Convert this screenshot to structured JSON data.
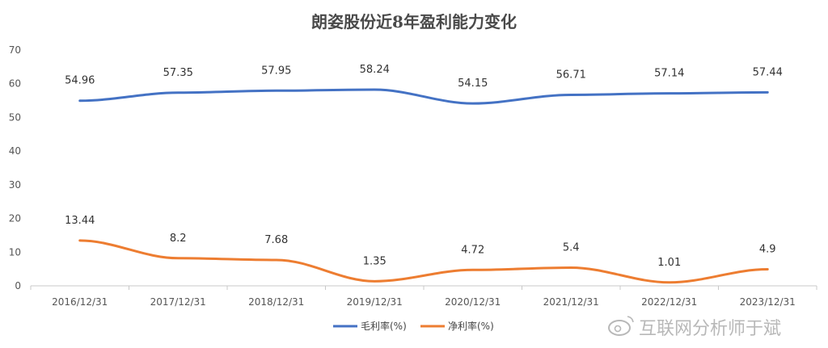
{
  "chart_data": {
    "type": "line",
    "title": "朗姿股份近8年盈利能力变化",
    "categories": [
      "2016/12/31",
      "2017/12/31",
      "2018/12/31",
      "2019/12/31",
      "2020/12/31",
      "2021/12/31",
      "2022/12/31",
      "2023/12/31"
    ],
    "series": [
      {
        "name": "毛利率(%)",
        "color": "#4472c4",
        "values": [
          54.96,
          57.35,
          57.95,
          58.24,
          54.15,
          56.71,
          57.14,
          57.44
        ],
        "labels": [
          "54.96",
          "57.35",
          "57.95",
          "58.24",
          "54.15",
          "56.71",
          "57.14",
          "57.44"
        ]
      },
      {
        "name": "净利率(%)",
        "color": "#ed7d31",
        "values": [
          13.44,
          8.2,
          7.68,
          1.35,
          4.72,
          5.4,
          1.01,
          4.9
        ],
        "labels": [
          "13.44",
          "8.2",
          "7.68",
          "1.35",
          "4.72",
          "5.4",
          "1.01",
          "4.9"
        ]
      }
    ],
    "ylim": [
      0,
      70
    ],
    "yticks": [
      "0",
      "10",
      "20",
      "30",
      "40",
      "50",
      "60",
      "70"
    ],
    "grid": false,
    "legend": "bottom"
  },
  "watermark": "互联网分析师于斌"
}
